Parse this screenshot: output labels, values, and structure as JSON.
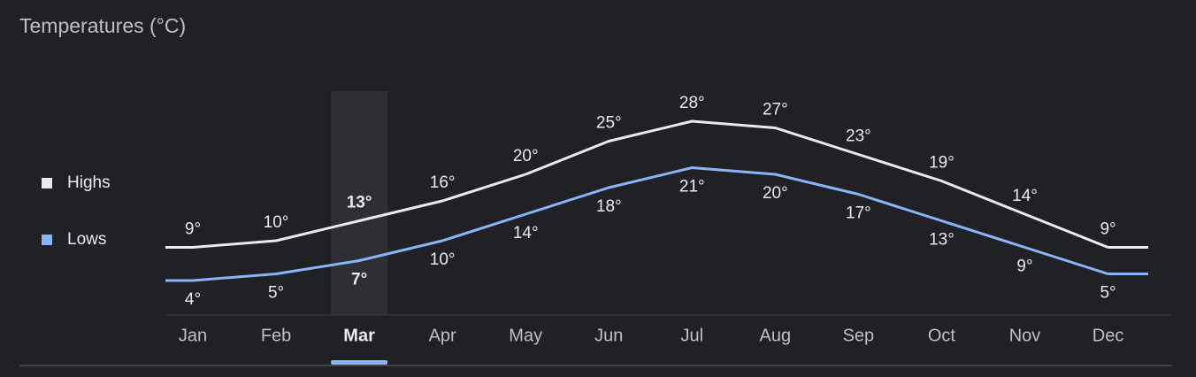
{
  "chart_data": {
    "type": "line",
    "title": "Temperatures (°C)",
    "categories": [
      "Jan",
      "Feb",
      "Mar",
      "Apr",
      "May",
      "Jun",
      "Jul",
      "Aug",
      "Sep",
      "Oct",
      "Nov",
      "Dec"
    ],
    "highlighted": 2,
    "series": [
      {
        "name": "Highs",
        "color": "#e8eaed",
        "values": [
          9,
          10,
          13,
          16,
          20,
          25,
          28,
          27,
          23,
          19,
          14,
          9
        ],
        "value_labels": [
          "9°",
          "10°",
          "13°",
          "16°",
          "20°",
          "25°",
          "28°",
          "27°",
          "23°",
          "19°",
          "14°",
          "9°"
        ]
      },
      {
        "name": "Lows",
        "color": "#8ab4f8",
        "values": [
          4,
          5,
          7,
          10,
          14,
          18,
          21,
          20,
          17,
          13,
          9,
          5
        ],
        "value_labels": [
          "4°",
          "5°",
          "7°",
          "10°",
          "14°",
          "18°",
          "21°",
          "20°",
          "17°",
          "13°",
          "9°",
          "5°"
        ]
      }
    ]
  }
}
